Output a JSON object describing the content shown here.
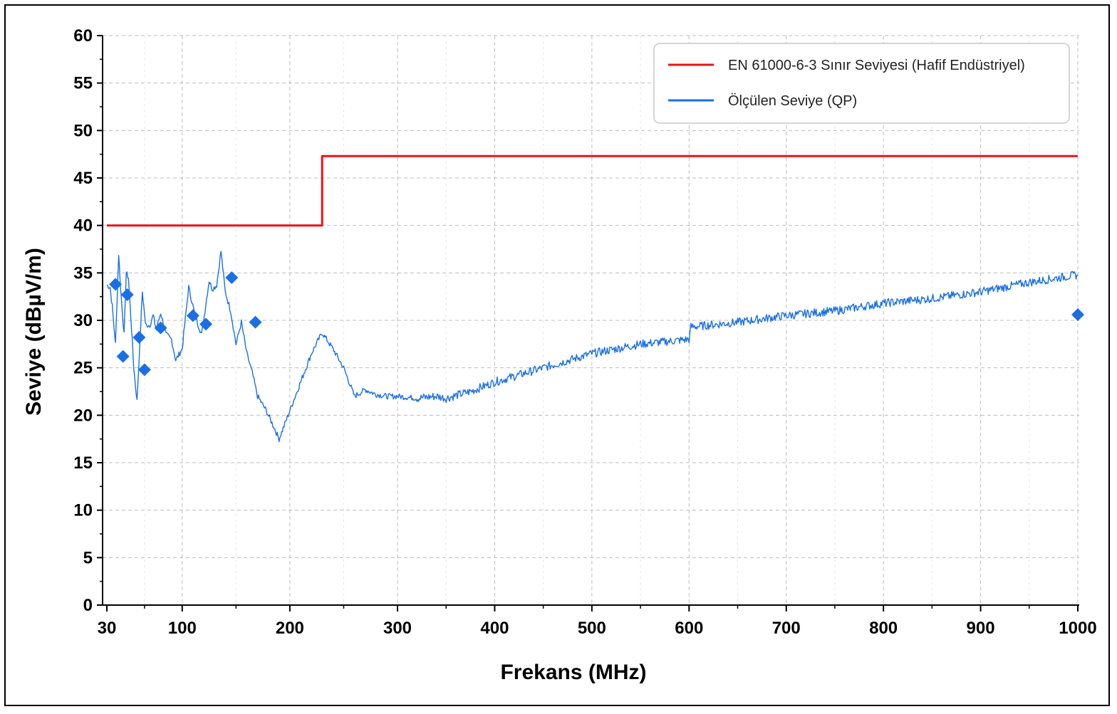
{
  "chart_data": {
    "type": "line",
    "xlabel": "Frekans (MHz)",
    "ylabel": "Seviye (dBµV/m)",
    "xlim": [
      30,
      1000
    ],
    "ylim": [
      0,
      60
    ],
    "x_ticks": [
      30,
      100,
      200,
      300,
      400,
      500,
      600,
      700,
      800,
      900,
      1000
    ],
    "y_ticks": [
      0,
      5,
      10,
      15,
      20,
      25,
      30,
      35,
      40,
      45,
      50,
      55,
      60
    ],
    "x_scale": "piecewise (30–300 MHz and 300–1000 MHz segments)",
    "grid": true,
    "legend_position": "top-right",
    "series": [
      {
        "name": "EN 61000-6-3 Sınır Seviyesi (Hafif Endüstriyel)",
        "color": "#e8121b",
        "x": [
          30,
          230,
          230,
          1000
        ],
        "y": [
          40,
          40,
          47.3,
          47.3
        ]
      },
      {
        "name": "Ölçülen Seviye (QP)",
        "color": "#1a6fe6",
        "x": [
          30,
          33,
          35,
          38,
          41,
          43,
          46,
          48,
          50,
          53,
          55,
          58,
          60,
          63,
          66,
          70,
          73,
          76,
          80,
          85,
          90,
          94,
          100,
          106,
          112,
          118,
          125,
          128,
          132,
          136,
          140,
          145,
          150,
          155,
          160,
          165,
          170,
          178,
          185,
          190,
          200,
          210,
          220,
          230,
          240,
          250,
          260,
          270,
          280,
          290,
          300,
          320,
          340,
          350,
          375,
          400,
          450,
          500,
          550,
          600,
          602,
          650,
          700,
          750,
          800,
          850,
          900,
          950,
          1000
        ],
        "y": [
          33.7,
          33.5,
          31.5,
          27.5,
          37.0,
          33.0,
          28.5,
          35.0,
          34.5,
          29.0,
          25.0,
          21.5,
          26.0,
          33.0,
          29.5,
          29.5,
          30.5,
          29.0,
          30.8,
          28.5,
          28.0,
          25.8,
          27.0,
          33.5,
          30.5,
          28.5,
          34.2,
          33.3,
          33.7,
          37.3,
          33.0,
          31.0,
          27.5,
          29.8,
          26.5,
          24.5,
          22.0,
          20.5,
          18.8,
          17.5,
          20.5,
          23.5,
          26.5,
          28.7,
          27.0,
          25.0,
          22.0,
          22.7,
          22.2,
          22.0,
          22.0,
          21.8,
          22.0,
          21.8,
          22.5,
          23.5,
          25.0,
          26.5,
          27.5,
          28.0,
          29.3,
          29.8,
          30.5,
          31.0,
          31.8,
          32.3,
          33.0,
          34.0,
          34.8
        ]
      }
    ],
    "markers": {
      "color": "#1a6fe6",
      "shape": "diamond",
      "points": [
        {
          "x": 38,
          "y": 33.8
        },
        {
          "x": 45,
          "y": 26.2
        },
        {
          "x": 49,
          "y": 32.7
        },
        {
          "x": 60,
          "y": 28.2
        },
        {
          "x": 65,
          "y": 24.8
        },
        {
          "x": 80,
          "y": 29.2
        },
        {
          "x": 110,
          "y": 30.5
        },
        {
          "x": 122,
          "y": 29.6
        },
        {
          "x": 146,
          "y": 34.5
        },
        {
          "x": 168,
          "y": 29.8
        },
        {
          "x": 1000,
          "y": 30.6
        }
      ]
    }
  }
}
